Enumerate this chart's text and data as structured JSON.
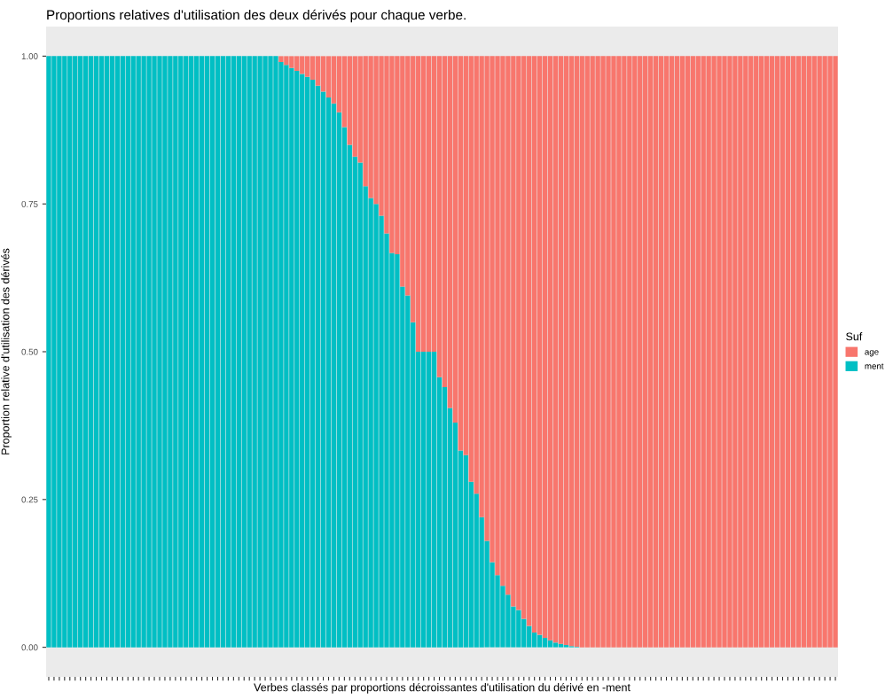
{
  "chart_data": {
    "type": "bar",
    "stacked": true,
    "title": "Proportions relatives d'utilisation des deux dérivés pour chaque verbe.",
    "xlabel": "Verbes classés par proportions décroissantes d'utilisation du dérivé en -ment",
    "ylabel": "Proportion relative d'utilisation des dérivés",
    "legend_title": "Suf",
    "legend": "right",
    "grid": false,
    "ylim": [
      -0.05,
      1.05
    ],
    "yticks": [
      {
        "value": 0,
        "label": "0.00"
      },
      {
        "value": 0.25,
        "label": "0.25"
      },
      {
        "value": 0.5,
        "label": "0.50"
      },
      {
        "value": 0.75,
        "label": "0.75"
      },
      {
        "value": 1,
        "label": "1.00"
      }
    ],
    "categories": [
      null,
      null,
      null,
      null,
      null,
      null,
      null,
      null,
      null,
      null,
      null,
      null,
      null,
      null,
      null,
      null,
      null,
      null,
      null,
      null,
      null,
      null,
      null,
      null,
      null,
      null,
      null,
      null,
      null,
      null,
      null,
      null,
      null,
      null,
      null,
      null,
      null,
      null,
      null,
      null,
      null,
      null,
      null,
      null,
      null,
      null,
      null,
      null,
      null,
      null,
      null,
      null,
      null,
      null,
      null,
      null,
      null,
      null,
      null,
      null,
      null,
      null,
      null,
      null,
      null,
      null,
      null,
      null,
      null,
      null,
      null,
      null,
      null,
      null,
      null,
      null,
      null,
      null,
      null,
      null,
      null,
      null,
      null,
      null,
      null,
      null,
      null,
      null,
      null,
      null,
      null,
      null,
      null,
      null,
      null,
      null,
      null,
      null,
      null,
      null,
      null,
      null,
      null,
      null,
      null,
      null,
      null,
      null,
      null,
      null,
      null,
      null,
      null,
      null,
      null,
      null,
      null,
      null,
      null,
      null,
      null,
      null,
      null,
      null,
      null,
      null,
      null,
      null,
      null,
      null,
      null,
      null,
      null,
      null,
      null,
      null,
      null,
      null,
      null,
      null,
      null,
      null,
      null,
      null,
      null,
      null,
      null,
      null,
      null,
      null
    ],
    "series": [
      {
        "name": "ment",
        "color": "#00bfc4",
        "values": [
          1,
          1,
          1,
          1,
          1,
          1,
          1,
          1,
          1,
          1,
          1,
          1,
          1,
          1,
          1,
          1,
          1,
          1,
          1,
          1,
          1,
          1,
          1,
          1,
          1,
          1,
          1,
          1,
          1,
          1,
          1,
          1,
          1,
          1,
          1,
          1,
          1,
          1,
          1,
          1,
          1,
          1,
          1,
          1,
          0.99,
          0.985,
          0.98,
          0.975,
          0.97,
          0.965,
          0.96,
          0.95,
          0.94,
          0.93,
          0.92,
          0.905,
          0.88,
          0.85,
          0.83,
          0.82,
          0.78,
          0.76,
          0.75,
          0.73,
          0.7,
          0.667,
          0.665,
          0.61,
          0.595,
          0.55,
          0.5,
          0.5,
          0.5,
          0.5,
          0.457,
          0.44,
          0.405,
          0.38,
          0.333,
          0.325,
          0.28,
          0.26,
          0.22,
          0.18,
          0.144,
          0.122,
          0.104,
          0.089,
          0.069,
          0.063,
          0.048,
          0.036,
          0.025,
          0.021,
          0.016,
          0.012,
          0.008,
          0.006,
          0.004,
          0.002,
          0.001,
          0,
          0,
          0,
          0,
          0,
          0,
          0,
          0,
          0,
          0,
          0,
          0,
          0,
          0,
          0,
          0,
          0,
          0,
          0,
          0,
          0,
          0,
          0,
          0,
          0,
          0,
          0,
          0,
          0,
          0,
          0,
          0,
          0,
          0,
          0,
          0,
          0,
          0,
          0,
          0,
          0,
          0,
          0,
          0,
          0,
          0,
          0,
          0,
          0
        ]
      },
      {
        "name": "age",
        "color": "#f8766d",
        "values": [
          0,
          0,
          0,
          0,
          0,
          0,
          0,
          0,
          0,
          0,
          0,
          0,
          0,
          0,
          0,
          0,
          0,
          0,
          0,
          0,
          0,
          0,
          0,
          0,
          0,
          0,
          0,
          0,
          0,
          0,
          0,
          0,
          0,
          0,
          0,
          0,
          0,
          0,
          0,
          0,
          0,
          0,
          0,
          0,
          0.01,
          0.015,
          0.02,
          0.025,
          0.03,
          0.035,
          0.04,
          0.05,
          0.06,
          0.07,
          0.08,
          0.095,
          0.12,
          0.15,
          0.17,
          0.18,
          0.22,
          0.24,
          0.25,
          0.27,
          0.3,
          0.333,
          0.335,
          0.39,
          0.405,
          0.45,
          0.5,
          0.5,
          0.5,
          0.5,
          0.543,
          0.56,
          0.595,
          0.62,
          0.667,
          0.675,
          0.72,
          0.74,
          0.78,
          0.82,
          0.856,
          0.878,
          0.896,
          0.911,
          0.931,
          0.937,
          0.952,
          0.964,
          0.975,
          0.979,
          0.984,
          0.988,
          0.992,
          0.994,
          0.996,
          0.998,
          0.999,
          1,
          1,
          1,
          1,
          1,
          1,
          1,
          1,
          1,
          1,
          1,
          1,
          1,
          1,
          1,
          1,
          1,
          1,
          1,
          1,
          1,
          1,
          1,
          1,
          1,
          1,
          1,
          1,
          1,
          1,
          1,
          1,
          1,
          1,
          1,
          1,
          1,
          1,
          1,
          1,
          1,
          1,
          1,
          1,
          1,
          1,
          1,
          1,
          1
        ]
      }
    ]
  }
}
